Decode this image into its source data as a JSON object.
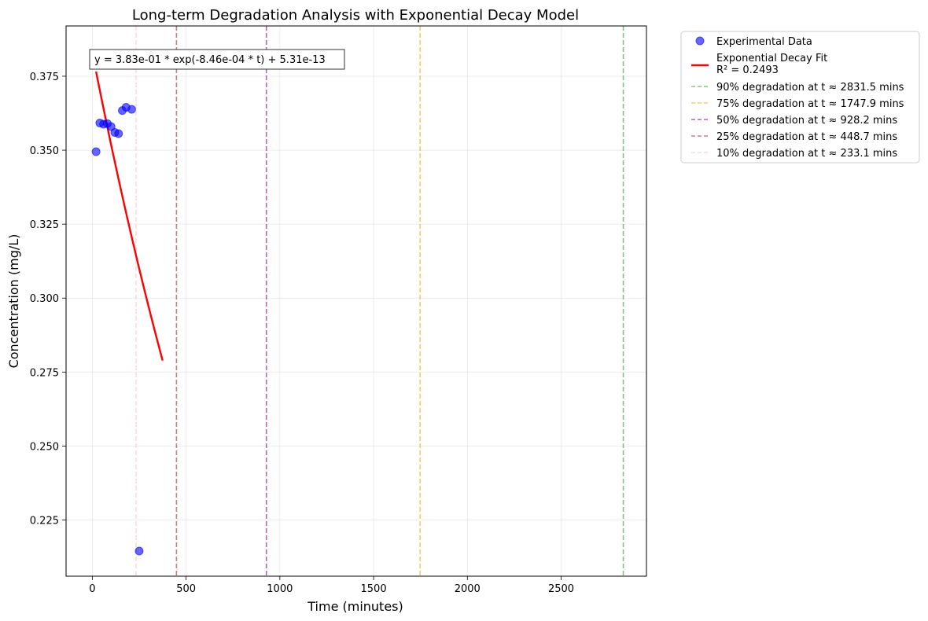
{
  "chart_data": {
    "type": "scatter",
    "title": "Long-term Degradation Analysis with Exponential Decay Model",
    "xlabel": "Time (minutes)",
    "ylabel": "Concentration (mg/L)",
    "xlim": [
      -140,
      2955
    ],
    "ylim": [
      0.206,
      0.392
    ],
    "xticks": [
      0,
      500,
      1000,
      1500,
      2000,
      2500
    ],
    "yticks": [
      0.225,
      0.25,
      0.275,
      0.3,
      0.325,
      0.35,
      0.375
    ],
    "ytick_labels": [
      "0.225",
      "0.250",
      "0.275",
      "0.300",
      "0.325",
      "0.350",
      "0.375"
    ],
    "grid": true,
    "legend_position": "outside-right",
    "equation_label": "y = 3.83e-01 * exp(-8.46e-04 * t) + 5.31e-13",
    "series": [
      {
        "name": "Experimental Data",
        "kind": "scatter",
        "color": "#0000ff",
        "points": [
          [
            20,
            0.3495
          ],
          [
            40,
            0.3592
          ],
          [
            60,
            0.3588
          ],
          [
            80,
            0.359
          ],
          [
            100,
            0.358
          ],
          [
            120,
            0.356
          ],
          [
            140,
            0.3556
          ],
          [
            160,
            0.3634
          ],
          [
            180,
            0.3645
          ],
          [
            210,
            0.3638
          ],
          [
            250,
            0.2145
          ]
        ]
      },
      {
        "name": "Exponential Decay Fit",
        "name_line2": "R² = 0.2493",
        "kind": "curve",
        "color": "#ff0000",
        "model": {
          "a": 0.383,
          "k": 0.000846,
          "c": 5.31e-13
        },
        "t_range": [
          20,
          375
        ]
      },
      {
        "name": "90% degradation at t ≈ 2831.5 mins",
        "kind": "vline",
        "x": 2831.5,
        "color": "#2ca02c"
      },
      {
        "name": "75% degradation at t ≈ 1747.9 mins",
        "kind": "vline",
        "x": 1747.9,
        "color": "#ffa500"
      },
      {
        "name": "50% degradation at t ≈ 928.2 mins",
        "kind": "vline",
        "x": 928.2,
        "color": "#800080"
      },
      {
        "name": "25% degradation at t ≈ 448.7 mins",
        "kind": "vline",
        "x": 448.7,
        "color": "#a52a2a"
      },
      {
        "name": "10% degradation at t ≈ 233.1 mins",
        "kind": "vline",
        "x": 233.1,
        "color": "#ffc0cb"
      }
    ]
  }
}
